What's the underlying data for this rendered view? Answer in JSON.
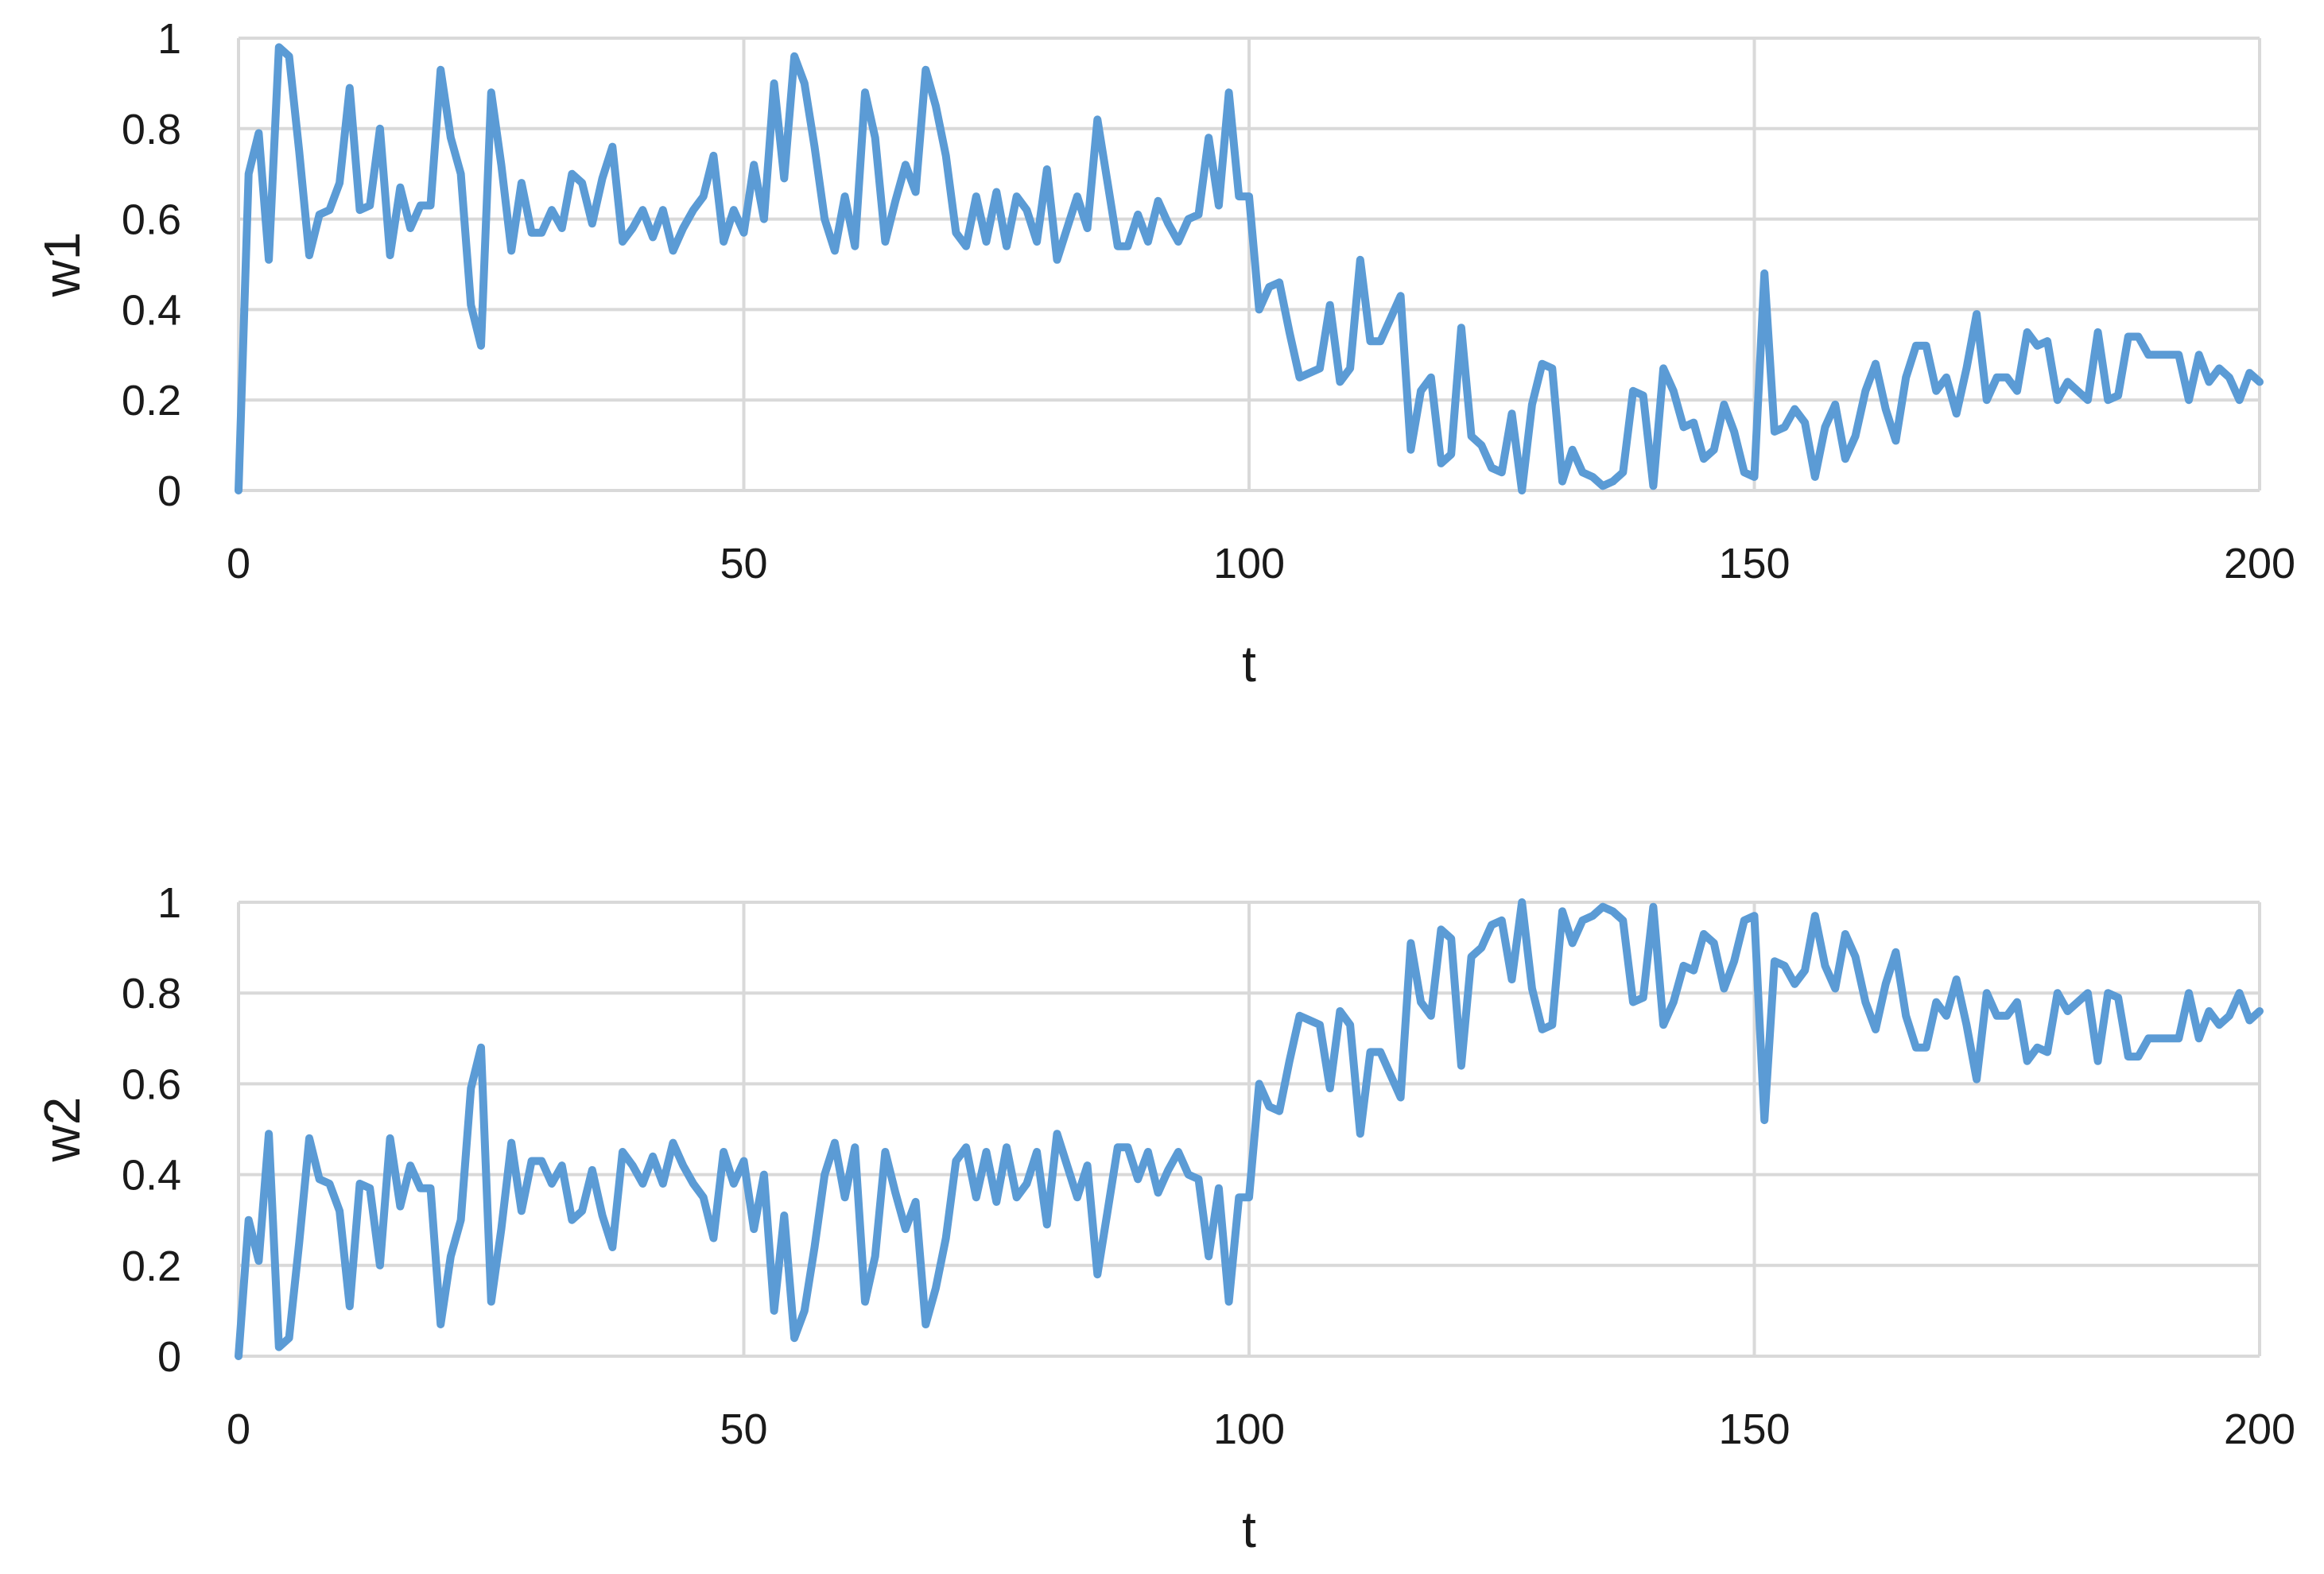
{
  "chart_data": [
    {
      "type": "line",
      "xlabel": "t",
      "ylabel": "w1",
      "xlim": [
        0,
        200
      ],
      "ylim": [
        0,
        1
      ],
      "xticks": [
        "0",
        "50",
        "100",
        "150",
        "200"
      ],
      "yticks": [
        "0",
        "0.2",
        "0.4",
        "0.6",
        "0.8",
        "1"
      ],
      "grid": true,
      "color": "#5b9bd5",
      "series": [
        {
          "x": [
            0,
            1,
            2,
            3,
            4,
            5,
            6,
            7,
            8,
            9,
            10,
            11,
            12,
            13,
            14,
            15,
            16,
            17,
            18,
            19,
            20,
            21,
            22,
            23,
            24,
            25,
            26,
            27,
            28,
            29,
            30,
            31,
            32,
            33,
            34,
            35,
            36,
            37,
            38,
            39,
            40,
            41,
            42,
            43,
            44,
            45,
            46,
            47,
            48,
            49,
            50,
            51,
            52,
            53,
            54,
            55,
            56,
            57,
            58,
            59,
            60,
            61,
            62,
            63,
            64,
            65,
            66,
            67,
            68,
            69,
            70,
            71,
            72,
            73,
            74,
            75,
            76,
            77,
            78,
            79,
            80,
            81,
            82,
            83,
            84,
            85,
            86,
            87,
            88,
            89,
            90,
            91,
            92,
            93,
            94,
            95,
            96,
            97,
            98,
            99,
            100,
            101,
            102,
            103,
            104,
            105,
            106,
            107,
            108,
            109,
            110,
            111,
            112,
            113,
            114,
            115,
            116,
            117,
            118,
            119,
            120,
            121,
            122,
            123,
            124,
            125,
            126,
            127,
            128,
            129,
            130,
            131,
            132,
            133,
            134,
            135,
            136,
            137,
            138,
            139,
            140,
            141,
            142,
            143,
            144,
            145,
            146,
            147,
            148,
            149,
            150,
            151,
            152,
            153,
            154,
            155,
            156,
            157,
            158,
            159,
            160,
            161,
            162,
            163,
            164,
            165,
            166,
            167,
            168,
            169,
            170,
            171,
            172,
            173,
            174,
            175,
            176,
            177,
            178,
            179,
            180,
            181,
            182,
            183,
            184,
            185,
            186,
            187,
            188,
            189,
            190,
            191,
            192,
            193,
            194,
            195,
            196,
            197,
            198,
            199,
            200
          ],
          "values": [
            0,
            0.7,
            0.79,
            0.51,
            0.98,
            0.96,
            0.75,
            0.52,
            0.61,
            0.62,
            0.68,
            0.89,
            0.62,
            0.63,
            0.8,
            0.52,
            0.67,
            0.58,
            0.63,
            0.63,
            0.93,
            0.78,
            0.7,
            0.41,
            0.32,
            0.88,
            0.72,
            0.53,
            0.68,
            0.57,
            0.57,
            0.62,
            0.58,
            0.7,
            0.68,
            0.59,
            0.69,
            0.76,
            0.55,
            0.58,
            0.62,
            0.56,
            0.62,
            0.53,
            0.58,
            0.62,
            0.65,
            0.74,
            0.55,
            0.62,
            0.57,
            0.72,
            0.6,
            0.9,
            0.69,
            0.96,
            0.9,
            0.76,
            0.6,
            0.53,
            0.65,
            0.54,
            0.88,
            0.78,
            0.55,
            0.64,
            0.72,
            0.66,
            0.93,
            0.85,
            0.74,
            0.57,
            0.54,
            0.65,
            0.55,
            0.66,
            0.54,
            0.65,
            0.62,
            0.55,
            0.71,
            0.51,
            0.58,
            0.65,
            0.58,
            0.82,
            0.68,
            0.54,
            0.54,
            0.61,
            0.55,
            0.64,
            0.59,
            0.55,
            0.6,
            0.61,
            0.78,
            0.63,
            0.88,
            0.65,
            0.65,
            0.4,
            0.45,
            0.46,
            0.35,
            0.25,
            0.26,
            0.27,
            0.41,
            0.24,
            0.27,
            0.51,
            0.33,
            0.33,
            0.38,
            0.43,
            0.09,
            0.22,
            0.25,
            0.06,
            0.08,
            0.36,
            0.12,
            0.1,
            0.05,
            0.04,
            0.17,
            0,
            0.19,
            0.28,
            0.27,
            0.02,
            0.09,
            0.04,
            0.03,
            0.01,
            0.02,
            0.04,
            0.22,
            0.21,
            0.01,
            0.27,
            0.22,
            0.14,
            0.15,
            0.07,
            0.09,
            0.19,
            0.13,
            0.04,
            0.03,
            0.48,
            0.13,
            0.14,
            0.18,
            0.15,
            0.03,
            0.14,
            0.19,
            0.07,
            0.12,
            0.22,
            0.28,
            0.18,
            0.11,
            0.25,
            0.32,
            0.32,
            0.22,
            0.25,
            0.17,
            0.27,
            0.39,
            0.2,
            0.25,
            0.25,
            0.22,
            0.35,
            0.32,
            0.33,
            0.2,
            0.24,
            0.22,
            0.2,
            0.35,
            0.2,
            0.21,
            0.34,
            0.34,
            0.3,
            0.3,
            0.3,
            0.3,
            0.2,
            0.3,
            0.24,
            0.27,
            0.25,
            0.2,
            0.26,
            0.24
          ]
        }
      ]
    },
    {
      "type": "line",
      "xlabel": "t",
      "ylabel": "w2",
      "xlim": [
        0,
        200
      ],
      "ylim": [
        0,
        1
      ],
      "xticks": [
        "0",
        "50",
        "100",
        "150",
        "200"
      ],
      "yticks": [
        "0",
        "0.2",
        "0.4",
        "0.6",
        "0.8",
        "1"
      ],
      "grid": true,
      "color": "#5b9bd5",
      "series": [
        {
          "x": [
            0,
            1,
            2,
            3,
            4,
            5,
            6,
            7,
            8,
            9,
            10,
            11,
            12,
            13,
            14,
            15,
            16,
            17,
            18,
            19,
            20,
            21,
            22,
            23,
            24,
            25,
            26,
            27,
            28,
            29,
            30,
            31,
            32,
            33,
            34,
            35,
            36,
            37,
            38,
            39,
            40,
            41,
            42,
            43,
            44,
            45,
            46,
            47,
            48,
            49,
            50,
            51,
            52,
            53,
            54,
            55,
            56,
            57,
            58,
            59,
            60,
            61,
            62,
            63,
            64,
            65,
            66,
            67,
            68,
            69,
            70,
            71,
            72,
            73,
            74,
            75,
            76,
            77,
            78,
            79,
            80,
            81,
            82,
            83,
            84,
            85,
            86,
            87,
            88,
            89,
            90,
            91,
            92,
            93,
            94,
            95,
            96,
            97,
            98,
            99,
            100,
            101,
            102,
            103,
            104,
            105,
            106,
            107,
            108,
            109,
            110,
            111,
            112,
            113,
            114,
            115,
            116,
            117,
            118,
            119,
            120,
            121,
            122,
            123,
            124,
            125,
            126,
            127,
            128,
            129,
            130,
            131,
            132,
            133,
            134,
            135,
            136,
            137,
            138,
            139,
            140,
            141,
            142,
            143,
            144,
            145,
            146,
            147,
            148,
            149,
            150,
            151,
            152,
            153,
            154,
            155,
            156,
            157,
            158,
            159,
            160,
            161,
            162,
            163,
            164,
            165,
            166,
            167,
            168,
            169,
            170,
            171,
            172,
            173,
            174,
            175,
            176,
            177,
            178,
            179,
            180,
            181,
            182,
            183,
            184,
            185,
            186,
            187,
            188,
            189,
            190,
            191,
            192,
            193,
            194,
            195,
            196,
            197,
            198,
            199,
            200
          ],
          "values": [
            0,
            0.3,
            0.21,
            0.49,
            0.02,
            0.04,
            0.25,
            0.48,
            0.39,
            0.38,
            0.32,
            0.11,
            0.38,
            0.37,
            0.2,
            0.48,
            0.33,
            0.42,
            0.37,
            0.37,
            0.07,
            0.22,
            0.3,
            0.59,
            0.68,
            0.12,
            0.28,
            0.47,
            0.32,
            0.43,
            0.43,
            0.38,
            0.42,
            0.3,
            0.32,
            0.41,
            0.31,
            0.24,
            0.45,
            0.42,
            0.38,
            0.44,
            0.38,
            0.47,
            0.42,
            0.38,
            0.35,
            0.26,
            0.45,
            0.38,
            0.43,
            0.28,
            0.4,
            0.1,
            0.31,
            0.04,
            0.1,
            0.24,
            0.4,
            0.47,
            0.35,
            0.46,
            0.12,
            0.22,
            0.45,
            0.36,
            0.28,
            0.34,
            0.07,
            0.15,
            0.26,
            0.43,
            0.46,
            0.35,
            0.45,
            0.34,
            0.46,
            0.35,
            0.38,
            0.45,
            0.29,
            0.49,
            0.42,
            0.35,
            0.42,
            0.18,
            0.32,
            0.46,
            0.46,
            0.39,
            0.45,
            0.36,
            0.41,
            0.45,
            0.4,
            0.39,
            0.22,
            0.37,
            0.12,
            0.35,
            0.35,
            0.6,
            0.55,
            0.54,
            0.65,
            0.75,
            0.74,
            0.73,
            0.59,
            0.76,
            0.73,
            0.49,
            0.67,
            0.67,
            0.62,
            0.57,
            0.91,
            0.78,
            0.75,
            0.94,
            0.92,
            0.64,
            0.88,
            0.9,
            0.95,
            0.96,
            0.83,
            1,
            0.81,
            0.72,
            0.73,
            0.98,
            0.91,
            0.96,
            0.97,
            0.99,
            0.98,
            0.96,
            0.78,
            0.79,
            0.99,
            0.73,
            0.78,
            0.86,
            0.85,
            0.93,
            0.91,
            0.81,
            0.87,
            0.96,
            0.97,
            0.52,
            0.87,
            0.86,
            0.82,
            0.85,
            0.97,
            0.86,
            0.81,
            0.93,
            0.88,
            0.78,
            0.72,
            0.82,
            0.89,
            0.75,
            0.68,
            0.68,
            0.78,
            0.75,
            0.83,
            0.73,
            0.61,
            0.8,
            0.75,
            0.75,
            0.78,
            0.65,
            0.68,
            0.67,
            0.8,
            0.76,
            0.78,
            0.8,
            0.65,
            0.8,
            0.79,
            0.66,
            0.66,
            0.7,
            0.7,
            0.7,
            0.7,
            0.8,
            0.7,
            0.76,
            0.73,
            0.75,
            0.8,
            0.74,
            0.76
          ]
        }
      ]
    }
  ]
}
